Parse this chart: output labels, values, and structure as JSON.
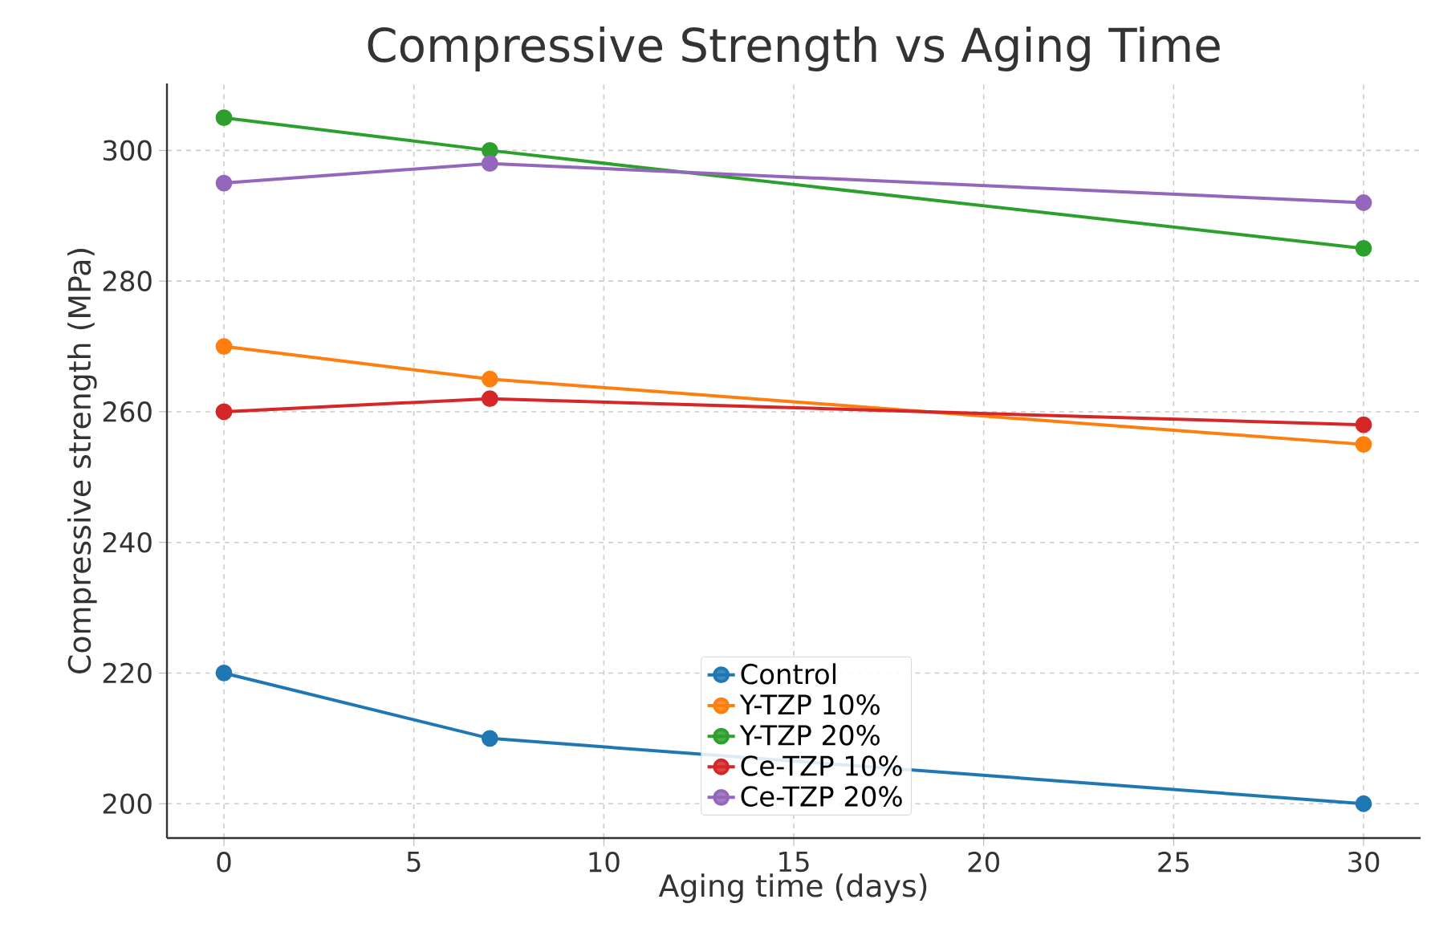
{
  "chart_data": {
    "type": "line",
    "title": "Compressive Strength vs Aging Time",
    "xlabel": "Aging time (days)",
    "ylabel": "Compressive strength (MPa)",
    "x": [
      0,
      7,
      30
    ],
    "series": [
      {
        "name": "Control",
        "color": "#1f77b4",
        "values": [
          220,
          210,
          200
        ]
      },
      {
        "name": "Y-TZP 10%",
        "color": "#ff7f0e",
        "values": [
          270,
          265,
          255
        ]
      },
      {
        "name": "Y-TZP 20%",
        "color": "#2ca02c",
        "values": [
          305,
          300,
          285
        ]
      },
      {
        "name": "Ce-TZP 10%",
        "color": "#d62728",
        "values": [
          260,
          262,
          258
        ]
      },
      {
        "name": "Ce-TZP 20%",
        "color": "#9467bd",
        "values": [
          295,
          298,
          292
        ]
      }
    ],
    "xlim": [
      -1.5,
      31.5
    ],
    "ylim": [
      194.75,
      310.25
    ],
    "xticks": [
      0,
      5,
      10,
      15,
      20,
      25,
      30
    ],
    "yticks": [
      200,
      220,
      240,
      260,
      280,
      300
    ],
    "grid": true,
    "legend": "bottom",
    "marker": "circle",
    "line_style": "solid"
  }
}
